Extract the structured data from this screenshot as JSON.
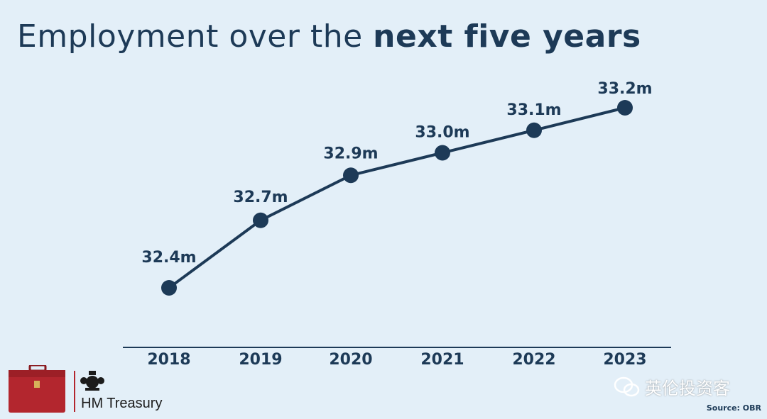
{
  "title": {
    "light": "Employment over the",
    "bold": "next five years"
  },
  "chart_data": {
    "type": "line",
    "title": "Employment over the next five years",
    "categories": [
      "2018",
      "2019",
      "2020",
      "2021",
      "2022",
      "2023"
    ],
    "values": [
      32.4,
      32.7,
      32.9,
      33.0,
      33.1,
      33.2
    ],
    "data_labels": [
      "32.4m",
      "32.7m",
      "32.9m",
      "33.0m",
      "33.1m",
      "33.2m"
    ],
    "grid": false,
    "color": "#1d3a57"
  },
  "footer": {
    "org_name": "HM Treasury",
    "watermark": "英伦投资客",
    "source": "Source: OBR"
  },
  "colors": {
    "background": "#e3eff8",
    "ink": "#1d3a57",
    "briefcase": "#b3262e"
  }
}
